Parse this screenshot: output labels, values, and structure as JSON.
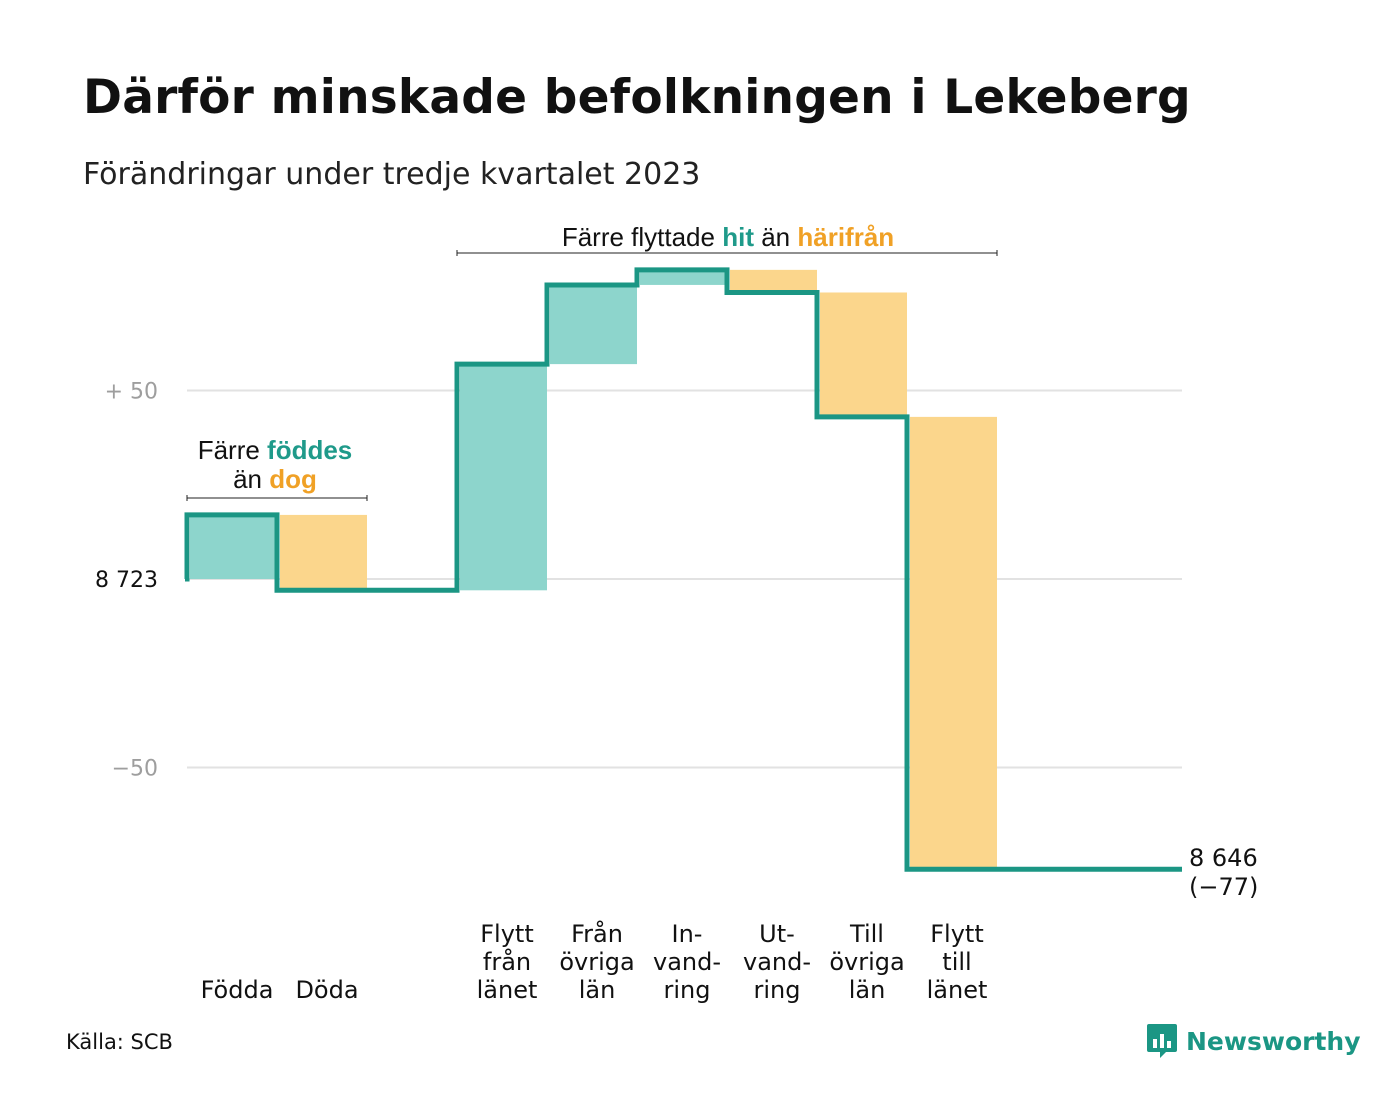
{
  "title": "Därför minskade befolkningen i Lekeberg",
  "subtitle": "Förändringar under tredje kvartalet 2023",
  "source": "Källa: SCB",
  "logo_text": "Newsworthy",
  "colors": {
    "increase": "#8dd5cc",
    "decrease": "#fbd68c",
    "line": "#1b9684",
    "grid": "#e2e2e2",
    "annot_teal": "#1f9a8a",
    "annot_orange": "#f0a126"
  },
  "chart_data": {
    "type": "waterfall",
    "baseline": 8723,
    "baseline_label": "8  723",
    "y_ticks": [
      {
        "value": 50,
        "label": "+  50"
      },
      {
        "value": -50,
        "label": "−50"
      }
    ],
    "ylim": [
      -77,
      82
    ],
    "categories": [
      {
        "label": "Födda",
        "lines": [
          "Födda"
        ],
        "change": 17
      },
      {
        "label": "Döda",
        "lines": [
          "Döda"
        ],
        "change": -20
      },
      {
        "label": "",
        "lines": [],
        "change": 0
      },
      {
        "label": "Flytt från länet",
        "lines": [
          "Flytt",
          "från",
          "länet"
        ],
        "change": 60
      },
      {
        "label": "Från övriga län",
        "lines": [
          "Från",
          "övriga",
          "län"
        ],
        "change": 21
      },
      {
        "label": "In-vand-ring",
        "lines": [
          "In-",
          "vand-",
          "ring"
        ],
        "change": 4
      },
      {
        "label": "Ut-vand-ring",
        "lines": [
          "Ut-",
          "vand-",
          "ring"
        ],
        "change": -6
      },
      {
        "label": "Till övriga län",
        "lines": [
          "Till",
          "övriga",
          "län"
        ],
        "change": -33
      },
      {
        "label": "Flytt till länet",
        "lines": [
          "Flytt",
          "till",
          "länet"
        ],
        "change": -120
      },
      {
        "label": "",
        "lines": [],
        "change": 0
      }
    ],
    "end": {
      "value": "8 646",
      "change": "(−77)"
    },
    "annotations": [
      {
        "from": 0,
        "to": 1,
        "line1": [
          {
            "t": "Färre ",
            "s": ""
          },
          {
            "t": "föddes",
            "s": "teal"
          }
        ],
        "line2": [
          {
            "t": "än ",
            "s": ""
          },
          {
            "t": "dog",
            "s": "orange"
          }
        ]
      },
      {
        "from": 3,
        "to": 8,
        "line1": [
          {
            "t": "Färre flyttade ",
            "s": ""
          },
          {
            "t": "hit",
            "s": "teal"
          },
          {
            "t": "  än ",
            "s": ""
          },
          {
            "t": "härifrån",
            "s": "orange"
          }
        ]
      }
    ]
  }
}
